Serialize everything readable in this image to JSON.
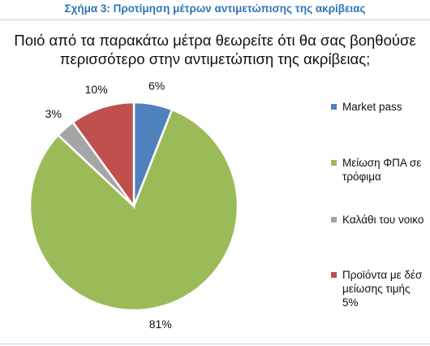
{
  "figure_caption": "Σχήμα 3: Προτίμηση μέτρων αντιμετώπισης της ακρίβειας",
  "chart_data": {
    "type": "pie",
    "title_lines": [
      "Ποιό από τα παρακάτω μέτρα θεωρείτε ότι θα σας βοηθούσε",
      "περισσότερο στην αντιμετώπιση της ακρίβειας;"
    ],
    "slices": [
      {
        "label": "Market pass",
        "value": 6,
        "display": "6%",
        "color": "#4f81bd"
      },
      {
        "label": "Μείωση ΦΠΑ σε\nτρόφιμα",
        "value": 81,
        "display": "81%",
        "color": "#9bbb59"
      },
      {
        "label": "Καλάθι του νοικο",
        "value": 3,
        "display": "3%",
        "color": "#a5a5a5"
      },
      {
        "label": "Προϊόντα με δέσ\nμείωσης τιμής",
        "value": 10,
        "display": "10%",
        "color": "#c0504d"
      }
    ],
    "legend_trailing_text": "5%",
    "legend_position": "right"
  }
}
